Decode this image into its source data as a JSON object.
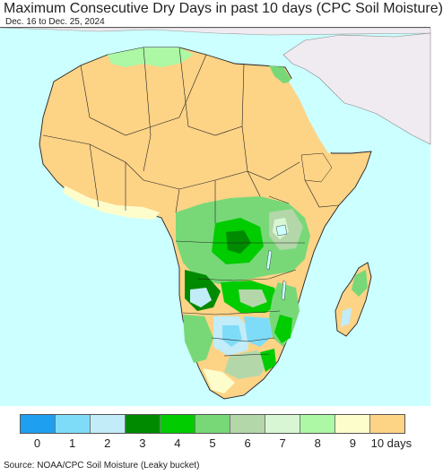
{
  "title": "Maximum Consecutive Dry Days in past 10 days (CPC Soil Moisture)",
  "subtitle": "Dec. 16 to Dec. 25, 2024",
  "source": "Source: NOAA/CPC Soil Moisture (Leaky bucket)",
  "colors": {
    "ocean": "#ccffff",
    "outside_land": "#efebf1",
    "border": "#222222"
  },
  "legend": [
    {
      "label": "0",
      "color": "#1e9ff0"
    },
    {
      "label": "1",
      "color": "#7fdcf8"
    },
    {
      "label": "2",
      "color": "#c1ecf8"
    },
    {
      "label": "3",
      "color": "#008a00"
    },
    {
      "label": "4",
      "color": "#00cc00"
    },
    {
      "label": "5",
      "color": "#78d878"
    },
    {
      "label": "6",
      "color": "#b3d7a9"
    },
    {
      "label": "7",
      "color": "#d9f6d4"
    },
    {
      "label": "8",
      "color": "#acf8a4"
    },
    {
      "label": "9",
      "color": "#fdfdcb"
    },
    {
      "label": "10 days",
      "color": "#fdd386"
    }
  ]
}
